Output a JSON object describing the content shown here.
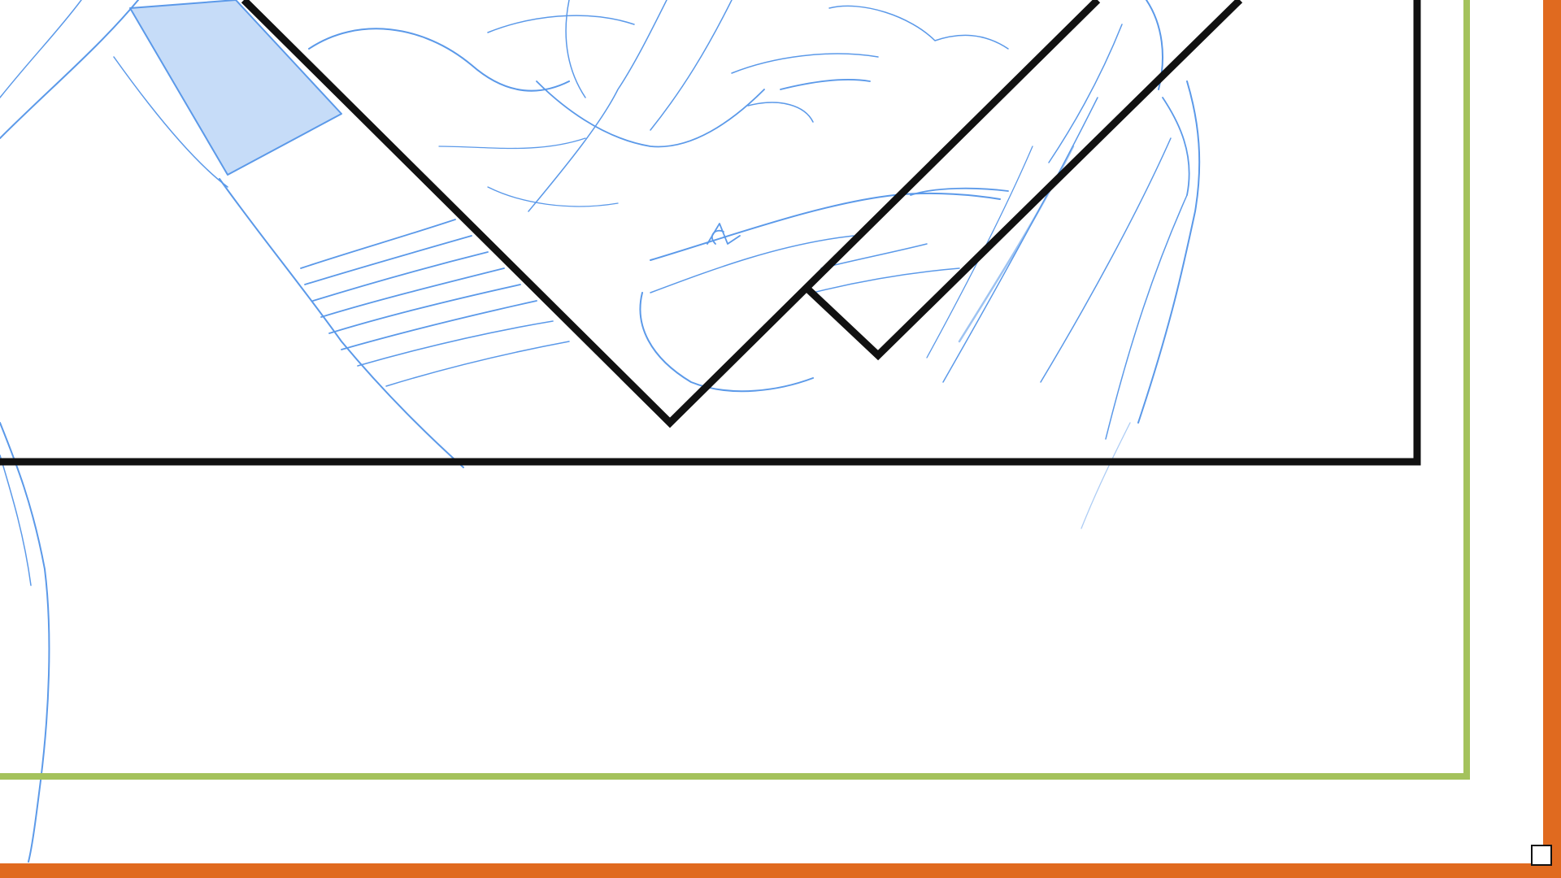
{
  "app": {
    "view": "manga-page-canvas"
  },
  "canvas": {
    "background_color": "#ffffff",
    "sketch_layer_color": "#4a8fe7",
    "panel_border_color": "#111111",
    "safe_area_guide_color": "#a4c25c",
    "page_edge_guide_color": "#e06a1f"
  },
  "icons": {
    "resize_handle": "square-handle-icon"
  }
}
